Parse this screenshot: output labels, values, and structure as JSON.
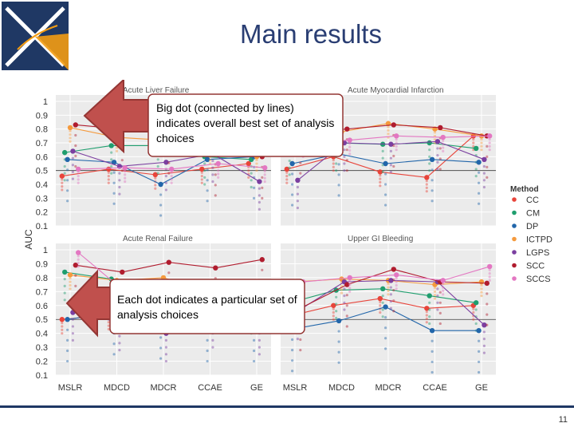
{
  "slide": {
    "title": "Main results",
    "page_number": "11"
  },
  "callouts": [
    {
      "text": "Big dot (connected by lines) indicates overall best set of analysis choices"
    },
    {
      "text": "Each dot indicates a particular set of analysis choices"
    }
  ],
  "colors": {
    "title": "#2a3e73",
    "arrow_fill": "#c0504d",
    "arrow_stroke": "#943634",
    "callout_border": "#943634",
    "logo_blue": "#1f3864",
    "logo_orange": "#f39c12"
  },
  "chart_data": {
    "type": "scatter",
    "ylabel": "AUC",
    "yticks": [
      "0.1",
      "0.2",
      "0.3",
      "0.4",
      "0.5",
      "0.6",
      "0.7",
      "0.8",
      "0.9",
      "1"
    ],
    "ylim": [
      0.1,
      1
    ],
    "categories": [
      "MSLR",
      "MDCD",
      "MDCR",
      "CCAE",
      "GE"
    ],
    "legend": {
      "title": "Method",
      "placement": "right",
      "items": [
        {
          "name": "CC",
          "color": "#e8443a"
        },
        {
          "name": "CM",
          "color": "#1f9e6e"
        },
        {
          "name": "DP",
          "color": "#2266aa"
        },
        {
          "name": "ICTPD",
          "color": "#f59a3d"
        },
        {
          "name": "LGPS",
          "color": "#7b3fa0"
        },
        {
          "name": "SCC",
          "color": "#b01c2e"
        },
        {
          "name": "SCCS",
          "color": "#e377c2"
        }
      ]
    },
    "panels": [
      {
        "title": "Acute Liver Failure",
        "series": [
          {
            "name": "CC",
            "values": [
              0.46,
              0.51,
              0.47,
              0.51,
              0.55
            ]
          },
          {
            "name": "CM",
            "values": [
              0.63,
              0.68,
              0.68,
              0.6,
              0.58
            ]
          },
          {
            "name": "DP",
            "values": [
              0.58,
              0.56,
              0.4,
              0.58,
              0.6
            ]
          },
          {
            "name": "ICTPD",
            "values": [
              0.81,
              0.74,
              0.72,
              0.65,
              0.6
            ]
          },
          {
            "name": "LGPS",
            "values": [
              0.64,
              0.53,
              0.56,
              0.62,
              0.42
            ]
          },
          {
            "name": "SCC",
            "values": [
              0.83,
              0.8,
              0.78,
              0.62,
              0.6
            ]
          },
          {
            "name": "SCCS",
            "values": [
              0.51,
              0.52,
              0.51,
              0.55,
              0.52
            ]
          }
        ]
      },
      {
        "title": "Acute Myocardial Infarction",
        "series": [
          {
            "name": "CC",
            "values": [
              0.51,
              0.6,
              0.49,
              0.45,
              0.75
            ]
          },
          {
            "name": "CM",
            "values": [
              0.67,
              0.7,
              0.69,
              0.7,
              0.66
            ]
          },
          {
            "name": "DP",
            "values": [
              0.55,
              0.62,
              0.55,
              0.58,
              0.56
            ]
          },
          {
            "name": "ICTPD",
            "values": [
              0.75,
              0.78,
              0.84,
              0.8,
              0.75
            ]
          },
          {
            "name": "LGPS",
            "values": [
              0.43,
              0.7,
              0.69,
              0.71,
              0.58
            ]
          },
          {
            "name": "SCC",
            "values": [
              0.78,
              0.8,
              0.83,
              0.81,
              0.75
            ]
          },
          {
            "name": "SCCS",
            "values": [
              0.7,
              0.72,
              0.75,
              0.74,
              0.75
            ]
          }
        ]
      },
      {
        "title": "Acute Renal Failure",
        "series": [
          {
            "name": "CC",
            "values": [
              0.5,
              0.53,
              0.58,
              0.55,
              0.52
            ]
          },
          {
            "name": "CM",
            "values": [
              0.84,
              0.79,
              0.65,
              0.62,
              0.6
            ]
          },
          {
            "name": "DP",
            "values": [
              0.5,
              0.55,
              0.52,
              0.5,
              0.5
            ]
          },
          {
            "name": "ICTPD",
            "values": [
              0.82,
              0.78,
              0.8,
              0.7,
              0.65
            ]
          },
          {
            "name": "LGPS",
            "values": [
              0.55,
              0.48,
              0.4,
              0.5,
              0.45
            ]
          },
          {
            "name": "SCC",
            "values": [
              0.89,
              0.84,
              0.91,
              0.87,
              0.93
            ]
          },
          {
            "name": "SCCS",
            "values": [
              0.98,
              0.7,
              0.75,
              0.68,
              0.66
            ]
          }
        ]
      },
      {
        "title": "Upper GI Bleeding",
        "series": [
          {
            "name": "CC",
            "values": [
              0.52,
              0.6,
              0.65,
              0.58,
              0.6
            ]
          },
          {
            "name": "CM",
            "values": [
              0.62,
              0.71,
              0.72,
              0.67,
              0.62
            ]
          },
          {
            "name": "DP",
            "values": [
              0.43,
              0.49,
              0.59,
              0.42,
              0.42
            ]
          },
          {
            "name": "ICTPD",
            "values": [
              0.77,
              0.79,
              0.78,
              0.75,
              0.77
            ]
          },
          {
            "name": "LGPS",
            "values": [
              0.56,
              0.77,
              0.78,
              0.77,
              0.46
            ]
          },
          {
            "name": "SCC",
            "values": [
              0.58,
              0.75,
              0.86,
              0.77,
              0.76
            ]
          },
          {
            "name": "SCCS",
            "values": [
              0.77,
              0.8,
              0.82,
              0.78,
              0.88
            ]
          }
        ]
      }
    ]
  }
}
